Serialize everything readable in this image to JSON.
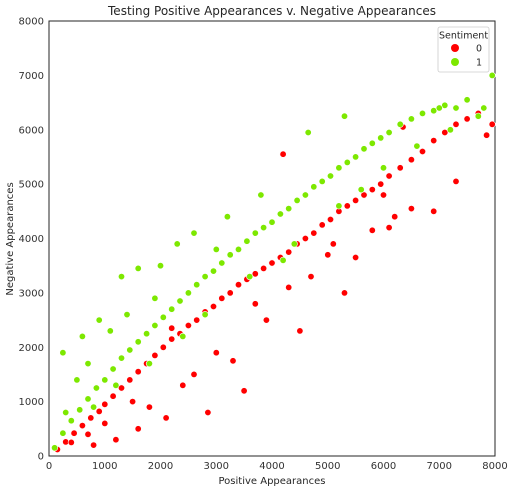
{
  "chart_data": {
    "type": "scatter",
    "title": "Testing Positive Appearances v. Negative Appearances",
    "xlabel": "Positive Appearances",
    "ylabel": "Negative Appearances",
    "xlim": [
      0,
      8000
    ],
    "ylim": [
      0,
      8000
    ],
    "xticks": [
      "0",
      "1000",
      "2000",
      "3000",
      "4000",
      "5000",
      "6000",
      "7000",
      "8000"
    ],
    "yticks": [
      "0",
      "1000",
      "2000",
      "3000",
      "4000",
      "5000",
      "6000",
      "7000",
      "8000"
    ],
    "grid": false,
    "legend": {
      "title": "Sentiment",
      "placement": "top-right",
      "entries": [
        {
          "label": "0",
          "color": "#ff0000"
        },
        {
          "label": "1",
          "color": "#7de800"
        }
      ]
    },
    "series": [
      {
        "name": "0",
        "color": "#ff0000",
        "points": [
          [
            150,
            120
          ],
          [
            300,
            260
          ],
          [
            450,
            420
          ],
          [
            600,
            560
          ],
          [
            750,
            700
          ],
          [
            900,
            820
          ],
          [
            1000,
            950
          ],
          [
            1150,
            1100
          ],
          [
            1300,
            1250
          ],
          [
            1450,
            1400
          ],
          [
            1600,
            1550
          ],
          [
            1750,
            1700
          ],
          [
            1900,
            1850
          ],
          [
            2050,
            2000
          ],
          [
            2200,
            2150
          ],
          [
            2350,
            2250
          ],
          [
            2500,
            2400
          ],
          [
            2650,
            2500
          ],
          [
            2800,
            2650
          ],
          [
            2950,
            2750
          ],
          [
            3100,
            2900
          ],
          [
            3250,
            3000
          ],
          [
            3400,
            3150
          ],
          [
            3550,
            3250
          ],
          [
            3700,
            3350
          ],
          [
            3850,
            3450
          ],
          [
            4000,
            3550
          ],
          [
            4150,
            3650
          ],
          [
            4300,
            3750
          ],
          [
            4450,
            3900
          ],
          [
            4600,
            4000
          ],
          [
            4750,
            4100
          ],
          [
            4900,
            4250
          ],
          [
            5050,
            4350
          ],
          [
            5200,
            4500
          ],
          [
            5350,
            4600
          ],
          [
            5500,
            4700
          ],
          [
            5650,
            4800
          ],
          [
            5800,
            4900
          ],
          [
            5950,
            5000
          ],
          [
            6100,
            5150
          ],
          [
            6300,
            5300
          ],
          [
            6500,
            5450
          ],
          [
            6700,
            5600
          ],
          [
            6900,
            5800
          ],
          [
            7100,
            5950
          ],
          [
            7300,
            6100
          ],
          [
            7500,
            6200
          ],
          [
            7700,
            6300
          ],
          [
            7850,
            5900
          ],
          [
            7950,
            6100
          ],
          [
            6350,
            6050
          ],
          [
            6900,
            4500
          ],
          [
            7300,
            5050
          ],
          [
            6500,
            4550
          ],
          [
            6200,
            4400
          ],
          [
            5100,
            3900
          ],
          [
            4500,
            2300
          ],
          [
            3500,
            1200
          ],
          [
            2850,
            800
          ],
          [
            3300,
            1750
          ],
          [
            3900,
            2500
          ],
          [
            5300,
            3000
          ],
          [
            4700,
            3300
          ],
          [
            6100,
            4200
          ],
          [
            2100,
            700
          ],
          [
            1600,
            500
          ],
          [
            1200,
            300
          ],
          [
            800,
            200
          ],
          [
            2600,
            1500
          ],
          [
            4200,
            5550
          ],
          [
            5500,
            3650
          ],
          [
            5800,
            4150
          ],
          [
            6000,
            4800
          ],
          [
            3000,
            1900
          ],
          [
            2400,
            1300
          ],
          [
            1800,
            900
          ],
          [
            3700,
            2800
          ],
          [
            4300,
            3100
          ],
          [
            5000,
            3700
          ],
          [
            2200,
            2350
          ],
          [
            1500,
            1000
          ],
          [
            1000,
            600
          ],
          [
            700,
            400
          ],
          [
            400,
            250
          ]
        ]
      },
      {
        "name": "1",
        "color": "#7de800",
        "points": [
          [
            100,
            150
          ],
          [
            250,
            420
          ],
          [
            400,
            650
          ],
          [
            550,
            850
          ],
          [
            700,
            1050
          ],
          [
            850,
            1250
          ],
          [
            1000,
            1400
          ],
          [
            1150,
            1600
          ],
          [
            1300,
            1800
          ],
          [
            1450,
            1950
          ],
          [
            1600,
            2100
          ],
          [
            1750,
            2250
          ],
          [
            1900,
            2400
          ],
          [
            2050,
            2550
          ],
          [
            2200,
            2700
          ],
          [
            2350,
            2850
          ],
          [
            2500,
            3000
          ],
          [
            2650,
            3150
          ],
          [
            2800,
            3300
          ],
          [
            2950,
            3400
          ],
          [
            3100,
            3550
          ],
          [
            3250,
            3700
          ],
          [
            3400,
            3800
          ],
          [
            3550,
            3950
          ],
          [
            3700,
            4100
          ],
          [
            3850,
            4200
          ],
          [
            4000,
            4300
          ],
          [
            4150,
            4450
          ],
          [
            4300,
            4550
          ],
          [
            4450,
            4700
          ],
          [
            4600,
            4800
          ],
          [
            4750,
            4950
          ],
          [
            4900,
            5050
          ],
          [
            5050,
            5150
          ],
          [
            5200,
            5300
          ],
          [
            5350,
            5400
          ],
          [
            5500,
            5500
          ],
          [
            5650,
            5650
          ],
          [
            5800,
            5750
          ],
          [
            5950,
            5850
          ],
          [
            6100,
            5950
          ],
          [
            6300,
            6100
          ],
          [
            6500,
            6200
          ],
          [
            6700,
            6300
          ],
          [
            6900,
            6350
          ],
          [
            7100,
            6450
          ],
          [
            7300,
            6400
          ],
          [
            7500,
            6550
          ],
          [
            7700,
            6250
          ],
          [
            7950,
            7000
          ],
          [
            7800,
            6400
          ],
          [
            7000,
            6400
          ],
          [
            5300,
            6250
          ],
          [
            4650,
            5950
          ],
          [
            3800,
            4800
          ],
          [
            3200,
            4400
          ],
          [
            2600,
            4100
          ],
          [
            2000,
            3500
          ],
          [
            1600,
            3450
          ],
          [
            1300,
            3300
          ],
          [
            900,
            2500
          ],
          [
            600,
            2200
          ],
          [
            250,
            1900
          ],
          [
            500,
            1400
          ],
          [
            3000,
            3800
          ],
          [
            4200,
            3600
          ],
          [
            5600,
            4900
          ],
          [
            6000,
            5300
          ],
          [
            2400,
            2200
          ],
          [
            1800,
            1700
          ],
          [
            1200,
            1300
          ],
          [
            800,
            900
          ],
          [
            2800,
            2600
          ],
          [
            3600,
            3300
          ],
          [
            4400,
            3900
          ],
          [
            5200,
            4600
          ],
          [
            6600,
            5700
          ],
          [
            7200,
            6000
          ],
          [
            2300,
            3900
          ],
          [
            1900,
            2900
          ],
          [
            1400,
            2600
          ],
          [
            1100,
            2300
          ],
          [
            700,
            1700
          ],
          [
            300,
            800
          ]
        ]
      }
    ]
  }
}
